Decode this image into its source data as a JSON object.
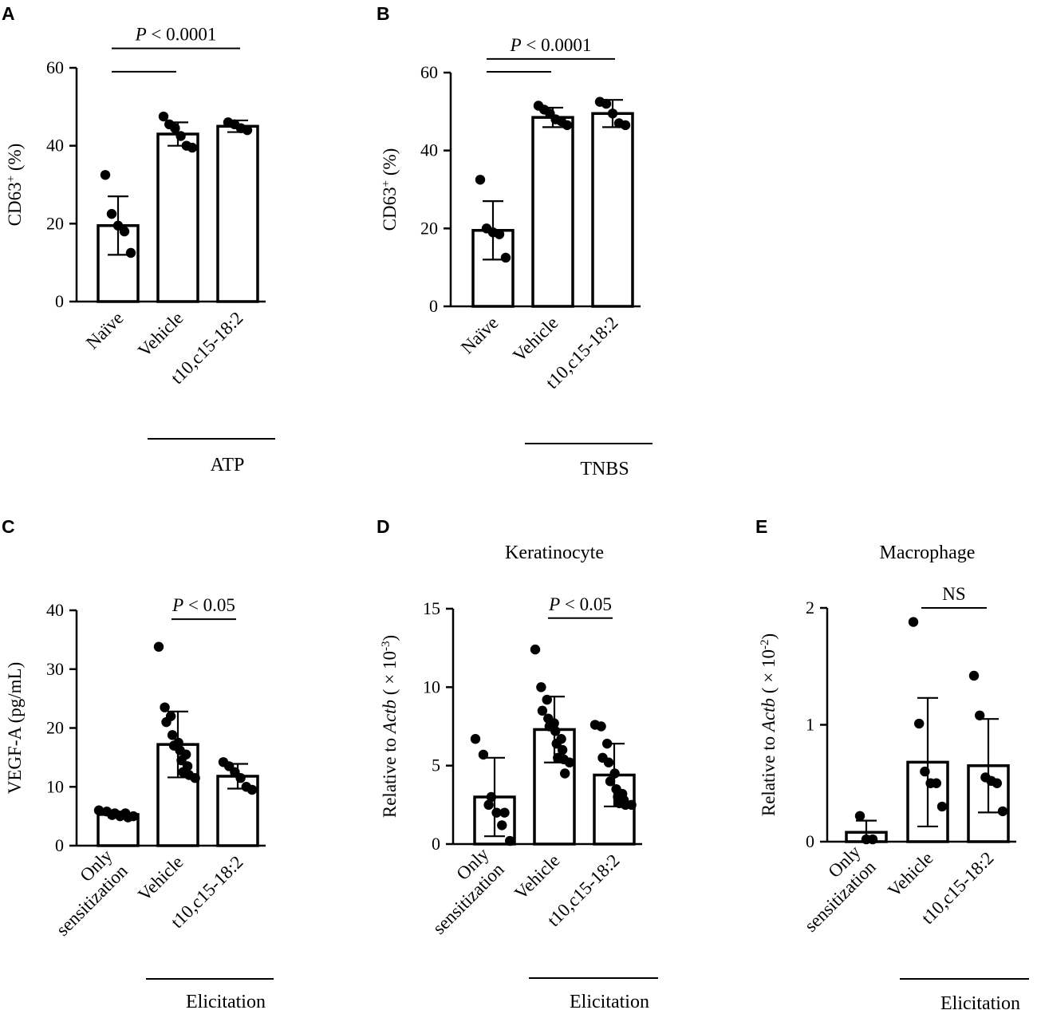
{
  "panels": [
    {
      "id": "A",
      "label": "A",
      "title": "",
      "ylabel": {
        "pre": "CD63",
        "sup": "+",
        "post": " (%)"
      },
      "categories": [
        "Naïve",
        "Vehicle",
        "t10,c15-18:2"
      ],
      "group_label": "ATP",
      "ylim": [
        0,
        60
      ],
      "yticks": [
        {
          "v": 0,
          "t": "0"
        },
        {
          "v": 20,
          "t": "20"
        },
        {
          "v": 40,
          "t": "40"
        },
        {
          "v": 60,
          "t": "60"
        }
      ],
      "significance": [
        {
          "from": 0,
          "to": 2,
          "level": 65,
          "label": "< 0.0001",
          "italic_p": true,
          "show_label": true
        },
        {
          "from": 0,
          "to": 1,
          "level": 59,
          "label": "",
          "italic_p": false,
          "show_label": false
        }
      ]
    },
    {
      "id": "B",
      "label": "B",
      "title": "",
      "ylabel": {
        "pre": "CD63",
        "sup": "+",
        "post": " (%)"
      },
      "categories": [
        "Naïve",
        "Vehicle",
        "t10,c15-18:2"
      ],
      "group_label": "TNBS",
      "ylim": [
        0,
        60
      ],
      "yticks": [
        {
          "v": 0,
          "t": "0"
        },
        {
          "v": 20,
          "t": "20"
        },
        {
          "v": 40,
          "t": "40"
        },
        {
          "v": 60,
          "t": "60"
        }
      ],
      "significance": [
        {
          "from": 0,
          "to": 2,
          "level": 63.5,
          "label": "< 0.0001",
          "italic_p": true,
          "show_label": true
        },
        {
          "from": 0,
          "to": 1,
          "level": 60.2,
          "label": "",
          "italic_p": false,
          "show_label": false
        }
      ]
    },
    {
      "id": "C",
      "label": "C",
      "title": "",
      "ylabel": {
        "pre": "VEGF-A (pg/mL)"
      },
      "categories": [
        "Only\nsensitization",
        "Vehicle",
        "t10,c15-18:2"
      ],
      "group_label": "Elicitation",
      "ylim": [
        0,
        40
      ],
      "yticks": [
        {
          "v": 0,
          "t": "0"
        },
        {
          "v": 10,
          "t": "10"
        },
        {
          "v": 20,
          "t": "20"
        },
        {
          "v": 30,
          "t": "30"
        },
        {
          "v": 40,
          "t": "40"
        }
      ],
      "significance": [
        {
          "from": 1,
          "to": 2,
          "level": 38.5,
          "label": "< 0.05",
          "italic_p": true,
          "show_label": true
        }
      ]
    },
    {
      "id": "D",
      "label": "D",
      "title": "Keratinocyte",
      "ylabel": {
        "pre": "Relative to ",
        "ital": "Actb",
        "post2": " ( × 10",
        "sup": "-3",
        "post": ")"
      },
      "categories": [
        "Only\nsensitization",
        "Vehicle",
        "t10,c15-18:2"
      ],
      "group_label": "Elicitation",
      "ylim": [
        0,
        15
      ],
      "yticks": [
        {
          "v": 0,
          "t": "0"
        },
        {
          "v": 5,
          "t": "5"
        },
        {
          "v": 10,
          "t": "10"
        },
        {
          "v": 15,
          "t": "15"
        }
      ],
      "significance": [
        {
          "from": 1,
          "to": 2,
          "level": 14.4,
          "label": "< 0.05",
          "italic_p": true,
          "show_label": true
        }
      ]
    },
    {
      "id": "E",
      "label": "E",
      "title": "Macrophage",
      "ylabel": {
        "pre": "Relative to ",
        "ital": "Actb",
        "post2": " ( × 10",
        "sup": "-2",
        "post": ")"
      },
      "categories": [
        "Only\nsensitization",
        "Vehicle",
        "t10,c15-18:2"
      ],
      "group_label": "Elicitation",
      "ylim": [
        0,
        2
      ],
      "yticks": [
        {
          "v": 0,
          "t": "0"
        },
        {
          "v": 1,
          "t": "1"
        },
        {
          "v": 2,
          "t": "2"
        }
      ],
      "significance": [
        {
          "from": 1,
          "to": 2,
          "level": 2.0,
          "label": "NS",
          "italic_p": false,
          "show_label": true
        }
      ]
    }
  ],
  "chart_data": [
    {
      "type": "bar",
      "panel": "A",
      "categories": [
        "Naïve",
        "Vehicle",
        "t10,c15-18:2"
      ],
      "values": [
        19.5,
        43.0,
        45.0
      ],
      "sd": [
        7.5,
        3.0,
        1.5
      ],
      "points": [
        [
          32.5,
          22.5,
          19.5,
          18.0,
          12.5
        ],
        [
          47.5,
          45.5,
          44.5,
          42.5,
          40.0,
          39.5
        ],
        [
          46.0,
          45.5,
          44.5,
          44.0
        ]
      ],
      "ylabel": "CD63+ (%)",
      "ylim": [
        0,
        60
      ],
      "xlabel": "ATP"
    },
    {
      "type": "bar",
      "panel": "B",
      "categories": [
        "Naïve",
        "Vehicle",
        "t10,c15-18:2"
      ],
      "values": [
        19.5,
        48.5,
        49.5
      ],
      "sd": [
        7.5,
        2.5,
        3.5
      ],
      "points": [
        [
          32.5,
          20.0,
          19.0,
          18.5,
          12.5
        ],
        [
          51.5,
          50.5,
          49.5,
          48.0,
          47.5,
          46.5
        ],
        [
          52.5,
          52.0,
          49.5,
          47.0,
          46.5
        ]
      ],
      "ylabel": "CD63+ (%)",
      "ylim": [
        0,
        60
      ],
      "xlabel": "TNBS"
    },
    {
      "type": "bar",
      "panel": "C",
      "categories": [
        "Only sensitization",
        "Vehicle",
        "t10,c15-18:2"
      ],
      "values": [
        5.3,
        17.2,
        11.8
      ],
      "sd": [
        0.5,
        5.6,
        2.1
      ],
      "points": [
        [
          6.0,
          5.8,
          5.5,
          5.2,
          5.0,
          4.8,
          5.5,
          5.0
        ],
        [
          33.8,
          23.5,
          22.0,
          21.0,
          18.8,
          17.5,
          17.0,
          16.2,
          15.5,
          14.5,
          13.5,
          12.5,
          12.0,
          11.5
        ],
        [
          14.2,
          13.5,
          12.5,
          11.5,
          10.0,
          9.5
        ]
      ],
      "ylabel": "VEGF-A (pg/mL)",
      "ylim": [
        0,
        40
      ],
      "xlabel": "Elicitation"
    },
    {
      "type": "bar",
      "panel": "D",
      "categories": [
        "Only sensitization",
        "Vehicle",
        "t10,c15-18:2"
      ],
      "values": [
        3.0,
        7.3,
        4.4
      ],
      "sd": [
        2.5,
        2.1,
        2.0
      ],
      "points": [
        [
          6.7,
          5.7,
          3.0,
          2.5,
          2.0,
          2.0,
          1.2,
          0.2
        ],
        [
          12.4,
          10.0,
          9.2,
          8.5,
          8.0,
          7.7,
          7.5,
          7.2,
          6.7,
          6.4,
          6.0,
          5.5,
          5.4,
          5.2,
          4.5
        ],
        [
          7.6,
          7.5,
          6.4,
          5.5,
          5.2,
          4.5,
          4.0,
          3.5,
          3.2,
          3.0,
          2.8,
          2.6,
          2.5,
          2.5
        ]
      ],
      "ylabel": "Relative to Actb ( × 10-3)",
      "ylim": [
        0,
        15
      ],
      "xlabel": "Elicitation"
    },
    {
      "type": "bar",
      "panel": "E",
      "categories": [
        "Only sensitization",
        "Vehicle",
        "t10,c15-18:2"
      ],
      "values": [
        0.08,
        0.68,
        0.65
      ],
      "sd": [
        0.1,
        0.55,
        0.4
      ],
      "points": [
        [
          0.22,
          0.02,
          0.02
        ],
        [
          1.88,
          1.01,
          0.6,
          0.5,
          0.5,
          0.3
        ],
        [
          1.42,
          1.08,
          0.55,
          0.52,
          0.5,
          0.26
        ]
      ],
      "ylabel": "Relative to Actb ( × 10-2)",
      "ylim": [
        0,
        2
      ],
      "xlabel": "Elicitation"
    }
  ]
}
